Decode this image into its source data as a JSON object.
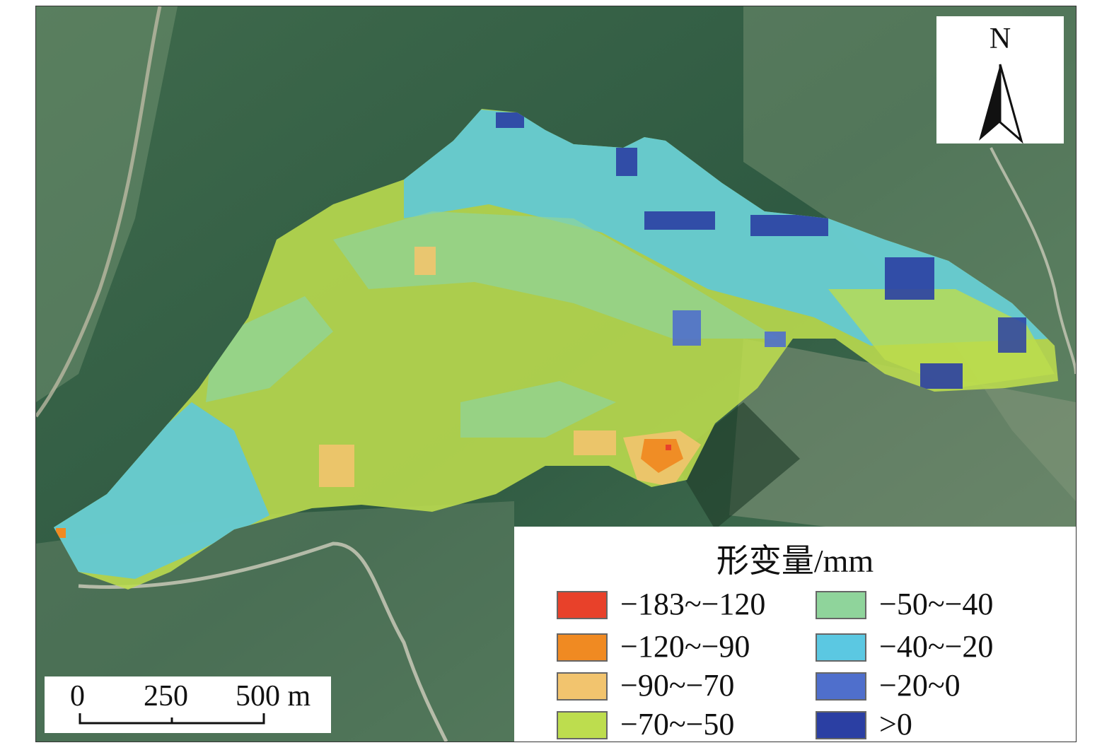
{
  "north": {
    "label": "N"
  },
  "scale": {
    "ticks": [
      "0",
      "250",
      "500 m"
    ]
  },
  "legend": {
    "title": "形变量/mm",
    "items": [
      {
        "label": "−183~−120",
        "color": "#e8412a"
      },
      {
        "label": "−120~−90",
        "color": "#f08a22"
      },
      {
        "label": "−90~−70",
        "color": "#f2c46e"
      },
      {
        "label": "−70~−50",
        "color": "#bddd4e"
      },
      {
        "label": "−50~−40",
        "color": "#8fd49b"
      },
      {
        "label": "−40~−20",
        "color": "#5bc8e2"
      },
      {
        "label": "−20~0",
        "color": "#4f6fcc"
      },
      {
        "label": ">0",
        "color": "#2b3fa3"
      }
    ]
  }
}
